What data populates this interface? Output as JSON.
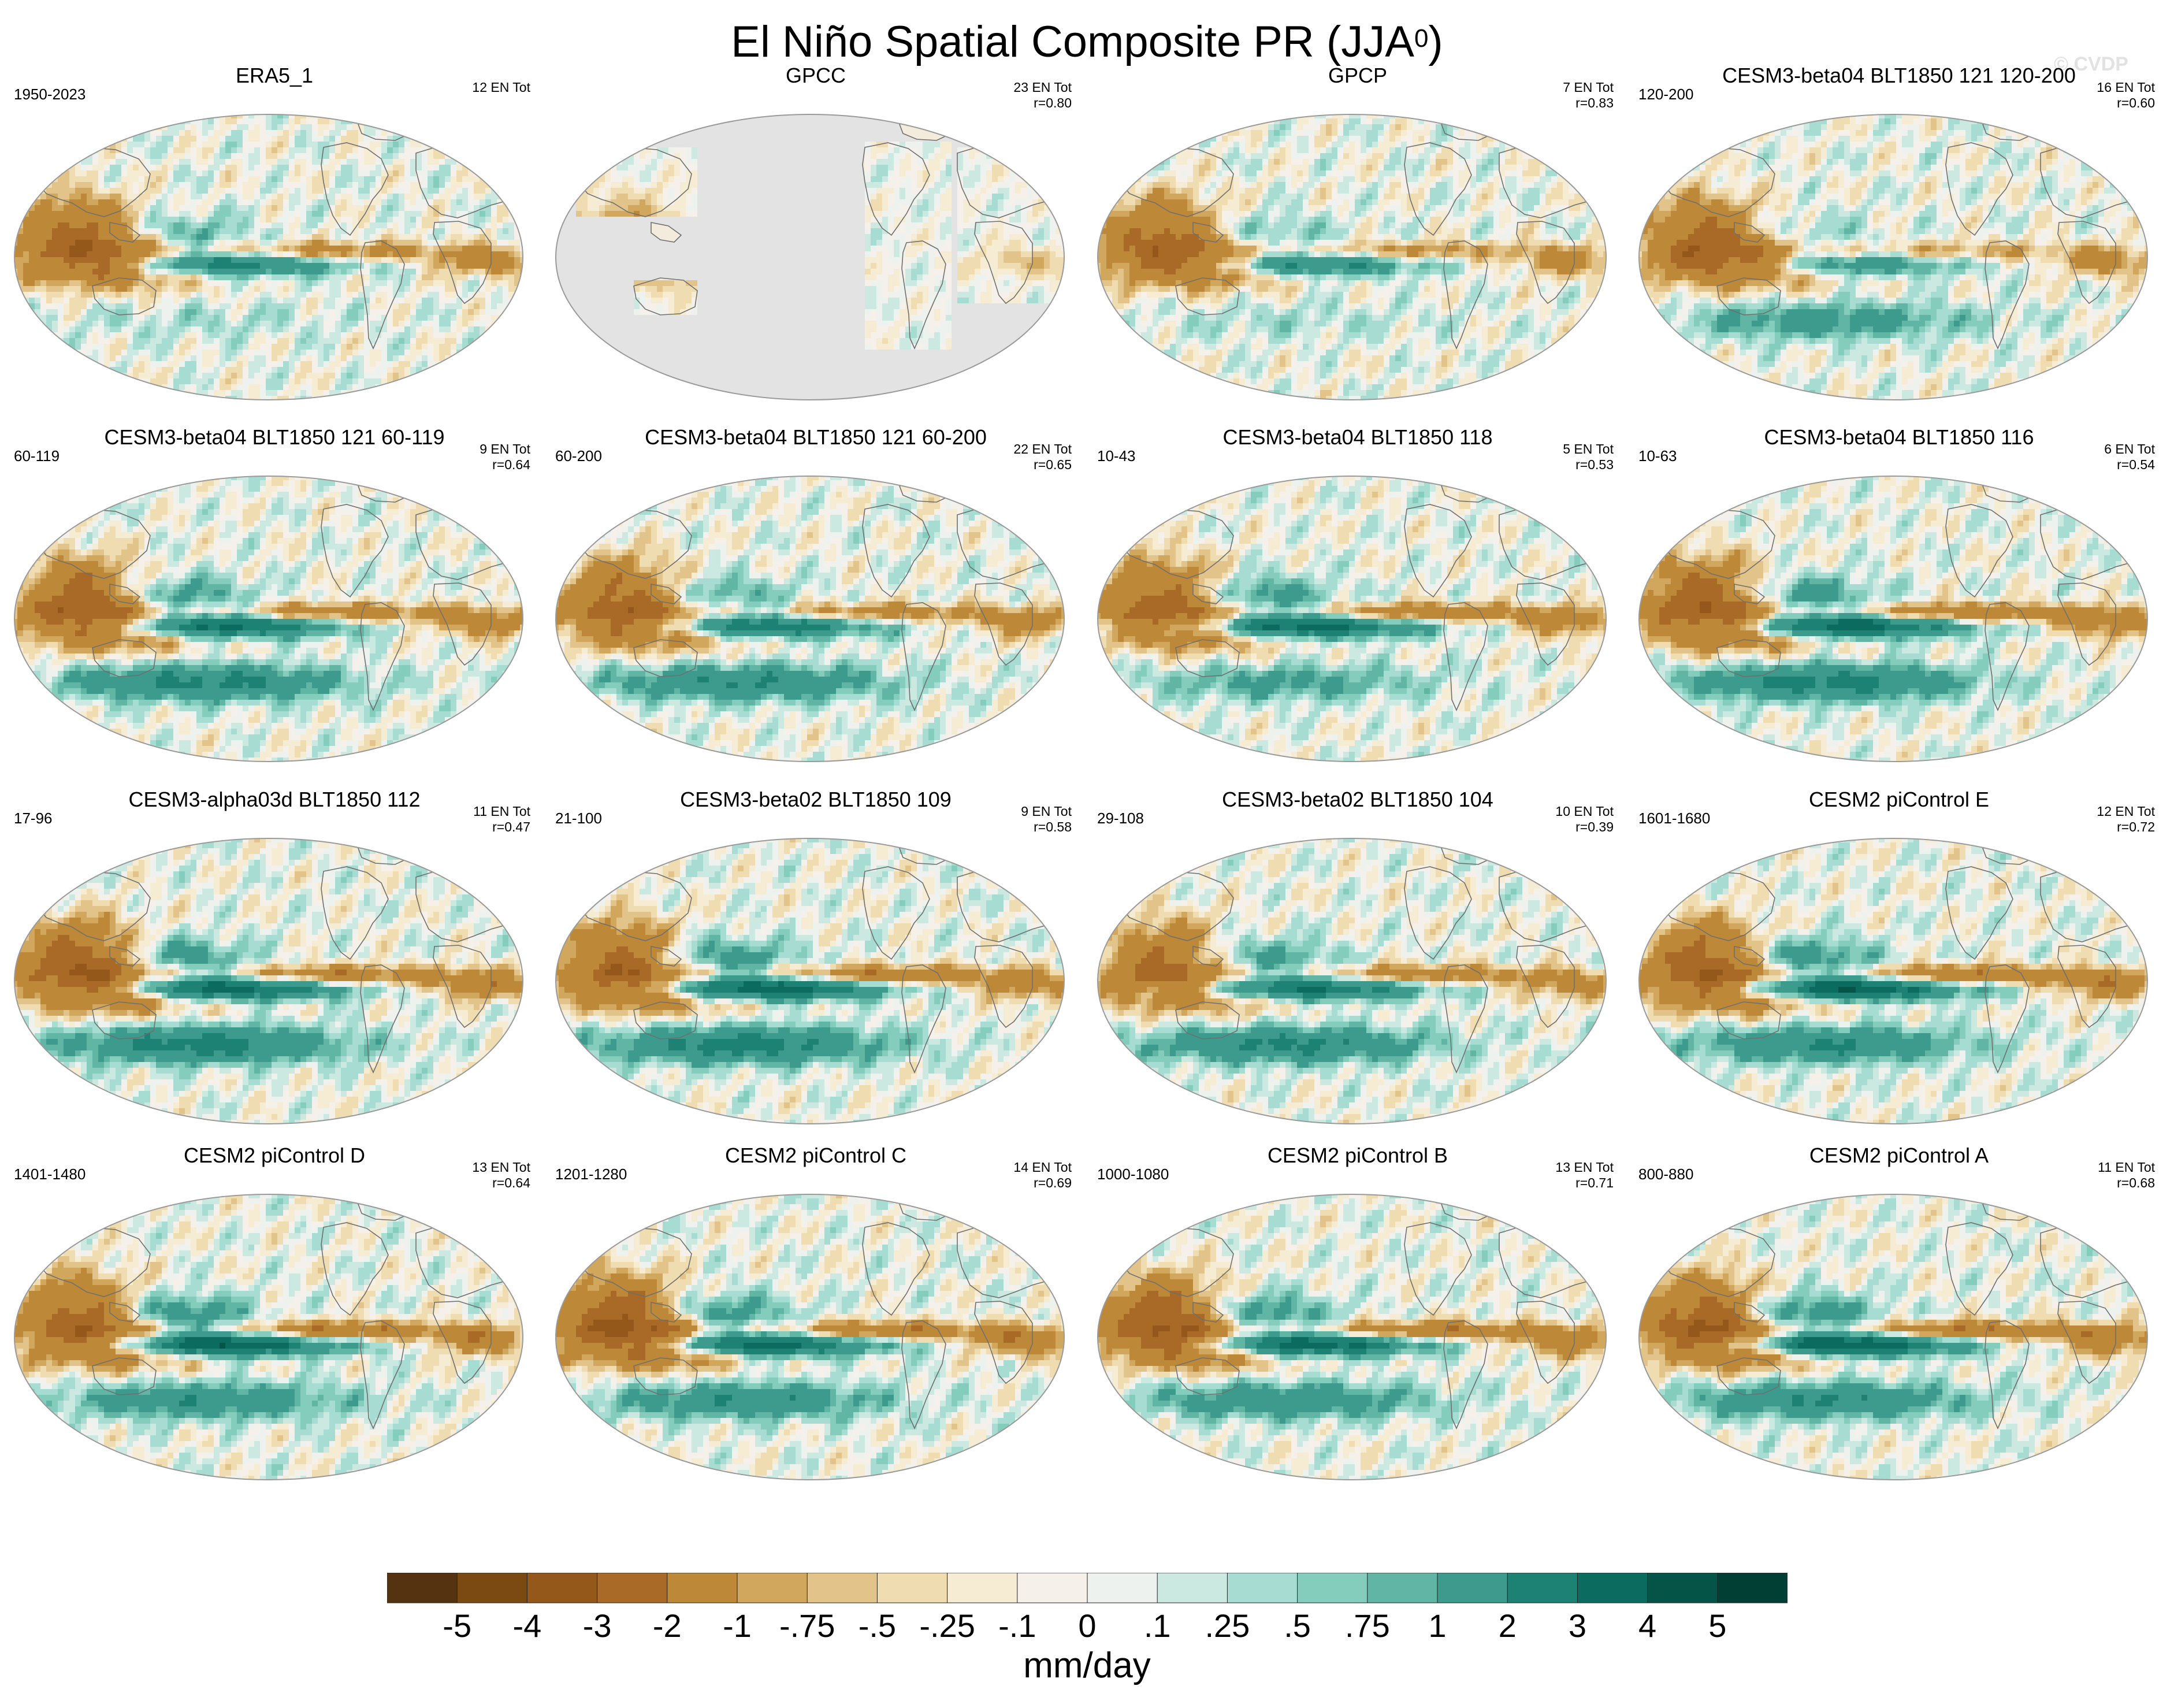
{
  "title": {
    "main": "El Niño Spatial Composite PR (JJA",
    "sup": "0",
    "close": ")"
  },
  "watermark": "© CVDP",
  "chart_data": {
    "type": "map-composite",
    "variable": "PR",
    "season": "JJA0",
    "units": "mm/day",
    "projection": "Robinson-like global, Pacific-centered",
    "panels": [
      {
        "title": "ERA5_1",
        "period": "1950-2023",
        "events": "12 EN Tot",
        "r": "",
        "dry_west_pacific": 3.2,
        "wet_central_pacific": 3.0,
        "south_pacific_band": 0.4,
        "land_masked": false
      },
      {
        "title": "GPCC",
        "period": "",
        "events": "23 EN Tot",
        "r": "r=0.80",
        "dry_west_pacific": 2.5,
        "wet_central_pacific": 0.0,
        "south_pacific_band": 0.0,
        "land_masked": true
      },
      {
        "title": "GPCP",
        "period": "",
        "events": "7 EN Tot",
        "r": "r=0.83",
        "dry_west_pacific": 3.0,
        "wet_central_pacific": 2.5,
        "south_pacific_band": 0.4,
        "land_masked": false
      },
      {
        "title": "CESM3-beta04 BLT1850 121 120-200",
        "period": "120-200",
        "events": "16 EN Tot",
        "r": "r=0.60",
        "dry_west_pacific": 3.0,
        "wet_central_pacific": 2.0,
        "south_pacific_band": 1.5,
        "land_masked": false
      },
      {
        "title": "CESM3-beta04 BLT1850 121 60-119",
        "period": "60-119",
        "events": "9 EN Tot",
        "r": "r=0.64",
        "dry_west_pacific": 3.3,
        "wet_central_pacific": 3.8,
        "south_pacific_band": 2.2,
        "land_masked": false
      },
      {
        "title": "CESM3-beta04 BLT1850 121 60-200",
        "period": "60-200",
        "events": "22 EN Tot",
        "r": "r=0.65",
        "dry_west_pacific": 3.0,
        "wet_central_pacific": 3.2,
        "south_pacific_band": 2.0,
        "land_masked": false
      },
      {
        "title": "CESM3-beta04 BLT1850 118",
        "period": "10-43",
        "events": "5 EN Tot",
        "r": "r=0.53",
        "dry_west_pacific": 3.0,
        "wet_central_pacific": 4.0,
        "south_pacific_band": 1.2,
        "land_masked": false
      },
      {
        "title": "CESM3-beta04 BLT1850 116",
        "period": "10-63",
        "events": "6 EN Tot",
        "r": "r=0.54",
        "dry_west_pacific": 3.4,
        "wet_central_pacific": 4.2,
        "south_pacific_band": 2.4,
        "land_masked": false
      },
      {
        "title": "CESM3-alpha03d BLT1850 112",
        "period": "17-96",
        "events": "11 EN Tot",
        "r": "r=0.47",
        "dry_west_pacific": 3.5,
        "wet_central_pacific": 4.0,
        "south_pacific_band": 2.5,
        "land_masked": false
      },
      {
        "title": "CESM3-beta02 BLT1850 109",
        "period": "21-100",
        "events": "9 EN Tot",
        "r": "r=0.58",
        "dry_west_pacific": 3.2,
        "wet_central_pacific": 4.2,
        "south_pacific_band": 2.5,
        "land_masked": false
      },
      {
        "title": "CESM3-beta02 BLT1850 104",
        "period": "29-108",
        "events": "10 EN Tot",
        "r": "r=0.39",
        "dry_west_pacific": 2.8,
        "wet_central_pacific": 3.6,
        "south_pacific_band": 2.2,
        "land_masked": false
      },
      {
        "title": "CESM2 piControl E",
        "period": "1601-1680",
        "events": "12 EN Tot",
        "r": "r=0.72",
        "dry_west_pacific": 3.5,
        "wet_central_pacific": 4.5,
        "south_pacific_band": 2.0,
        "land_masked": false
      },
      {
        "title": "CESM2 piControl D",
        "period": "1401-1480",
        "events": "13 EN Tot",
        "r": "r=0.64",
        "dry_west_pacific": 3.3,
        "wet_central_pacific": 4.5,
        "south_pacific_band": 1.8,
        "land_masked": false
      },
      {
        "title": "CESM2 piControl C",
        "period": "1201-1280",
        "events": "14 EN Tot",
        "r": "r=0.69",
        "dry_west_pacific": 3.8,
        "wet_central_pacific": 4.2,
        "south_pacific_band": 1.8,
        "land_masked": false
      },
      {
        "title": "CESM2 piControl B",
        "period": "1000-1080",
        "events": "13 EN Tot",
        "r": "r=0.71",
        "dry_west_pacific": 3.6,
        "wet_central_pacific": 4.2,
        "south_pacific_band": 1.8,
        "land_masked": false
      },
      {
        "title": "CESM2 piControl A",
        "period": "800-880",
        "events": "11 EN Tot",
        "r": "r=0.68",
        "dry_west_pacific": 3.6,
        "wet_central_pacific": 4.6,
        "south_pacific_band": 2.0,
        "land_masked": false
      }
    ],
    "colorbar": {
      "colors": [
        "#553310",
        "#7a4a12",
        "#94581a",
        "#a86a26",
        "#bd8938",
        "#d1a75e",
        "#e2c48a",
        "#efdcb0",
        "#f6ecd3",
        "#f5f1ea",
        "#eef2ef",
        "#cce9e1",
        "#a6dcd1",
        "#84cdbd",
        "#60b5a5",
        "#3d9b8d",
        "#1d8174",
        "#0b6b5e",
        "#045547",
        "#013f34"
      ],
      "labels": [
        "-5",
        "-4",
        "-3",
        "-2",
        "-1",
        "-.75",
        "-.5",
        "-.25",
        "-.1",
        "0",
        ".1",
        ".25",
        ".5",
        ".75",
        "1",
        "2",
        "3",
        "4",
        "5"
      ],
      "units": "mm/day"
    }
  }
}
